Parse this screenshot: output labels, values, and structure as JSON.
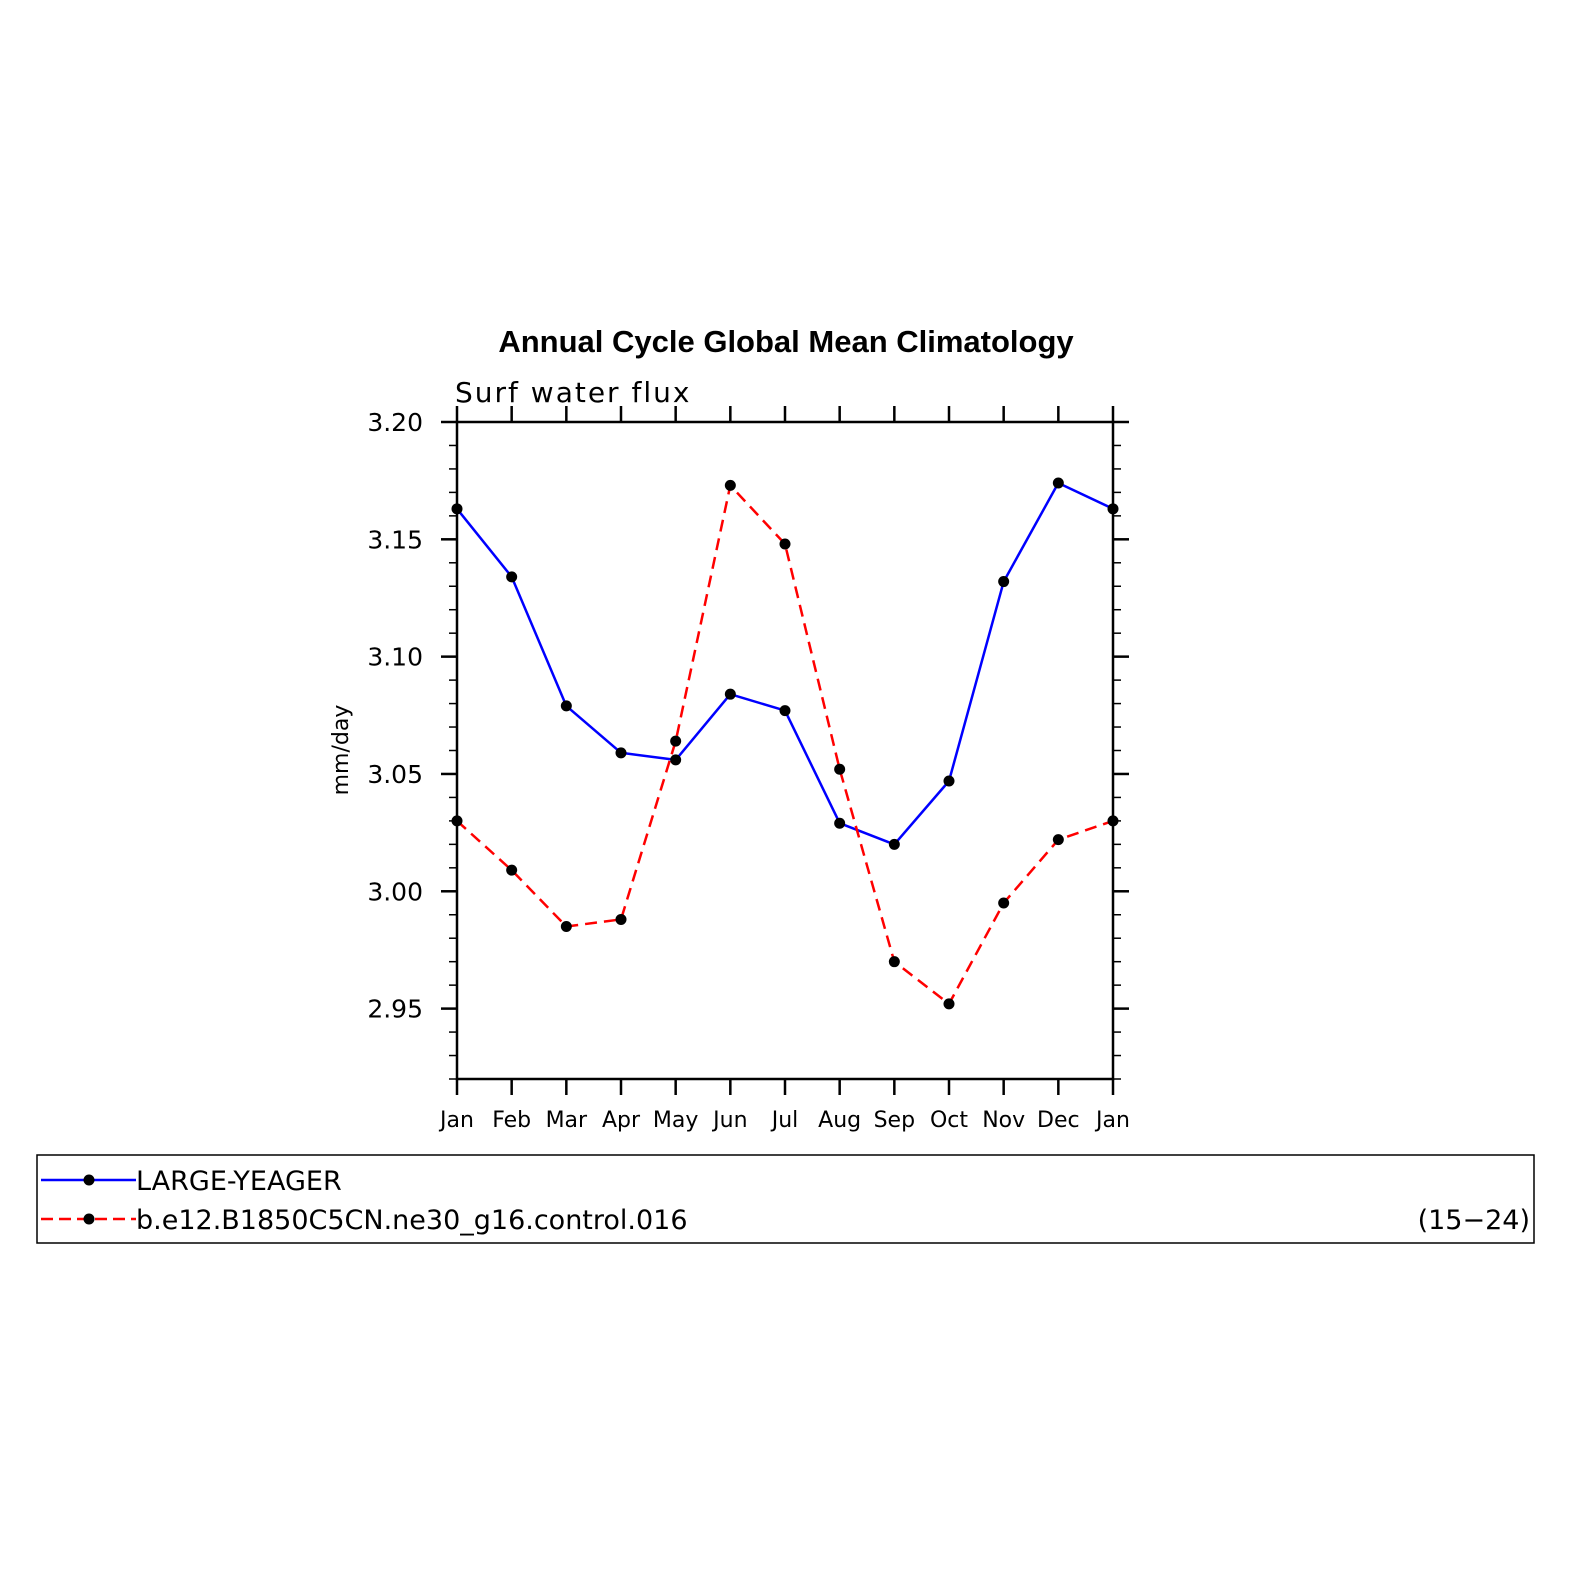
{
  "chart_data": {
    "type": "line",
    "title": "Annual Cycle Global Mean Climatology",
    "subtitle": "Surf water flux",
    "ylabel": "mm/day",
    "xlabel": "",
    "categories": [
      "Jan",
      "Feb",
      "Mar",
      "Apr",
      "May",
      "Jun",
      "Jul",
      "Aug",
      "Sep",
      "Oct",
      "Nov",
      "Dec",
      "Jan"
    ],
    "ylim": [
      2.92,
      3.2
    ],
    "yticks": [
      {
        "value": 3.2,
        "label": "3.20"
      },
      {
        "value": 3.15,
        "label": "3.15"
      },
      {
        "value": 3.1,
        "label": "3.10"
      },
      {
        "value": 3.05,
        "label": "3.05"
      },
      {
        "value": 3.0,
        "label": "3.00"
      },
      {
        "value": 2.95,
        "label": "2.95"
      }
    ],
    "series": [
      {
        "name": "LARGE-YEAGER",
        "color": "#0000ff",
        "dash": "solid",
        "values": [
          3.163,
          3.134,
          3.079,
          3.059,
          3.056,
          3.084,
          3.077,
          3.029,
          3.02,
          3.047,
          3.132,
          3.174,
          3.163
        ]
      },
      {
        "name": "b.e12.B1850C5CN.ne30_g16.control.016",
        "color": "#ff0000",
        "dash": "dashed",
        "values": [
          3.03,
          3.009,
          2.985,
          2.988,
          3.064,
          3.173,
          3.148,
          3.052,
          2.97,
          2.952,
          2.995,
          3.022,
          3.03
        ]
      }
    ],
    "legend": {
      "placement": "bottom",
      "note": "(15−24)"
    },
    "grid": false
  }
}
